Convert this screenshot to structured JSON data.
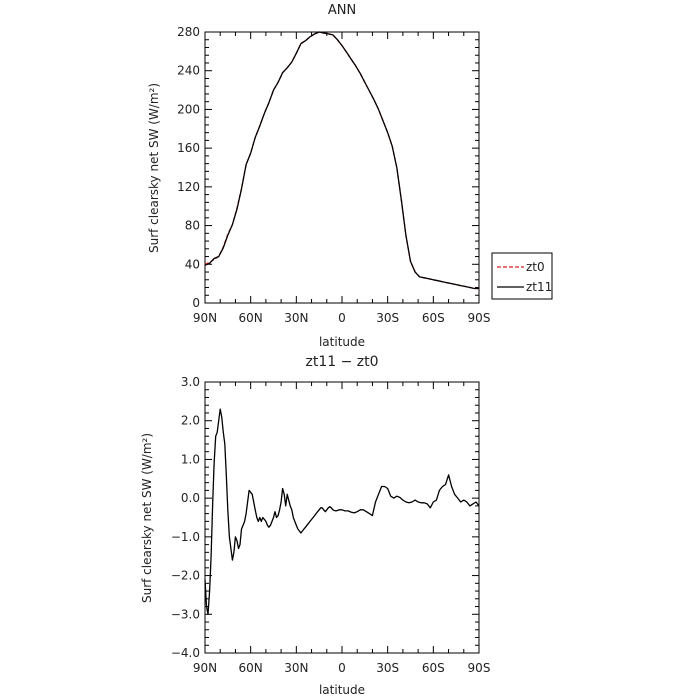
{
  "chart_data": [
    {
      "type": "line",
      "title": "ANN",
      "xlabel": "latitude",
      "ylabel": "Surf clearsky net SW (W/m²)",
      "x_axis": {
        "direction": "north-to-south",
        "range": [
          90,
          -90
        ],
        "ticks": [
          90,
          60,
          30,
          0,
          -30,
          -60,
          -90
        ],
        "tick_labels": [
          "90N",
          "60N",
          "30N",
          "0",
          "30S",
          "60S",
          "90S"
        ]
      },
      "y_axis": {
        "range": [
          0,
          280
        ],
        "ticks": [
          0,
          40,
          80,
          120,
          160,
          200,
          240,
          280
        ],
        "tick_labels": [
          "0",
          "40",
          "80",
          "120",
          "160",
          "200",
          "240",
          "280"
        ]
      },
      "legend": {
        "placement": "right-outside",
        "entries": [
          "zt0",
          "zt11"
        ]
      },
      "series": [
        {
          "name": "zt0",
          "color": "#d62020",
          "style": "dashed",
          "x": [
            90,
            87,
            84,
            81,
            78,
            75,
            72,
            69,
            66,
            63,
            60,
            57,
            54,
            51,
            48,
            45,
            42,
            39,
            36,
            33,
            30,
            27,
            24,
            21,
            18,
            15,
            12,
            9,
            6,
            3,
            0,
            -3,
            -6,
            -9,
            -12,
            -15,
            -18,
            -21,
            -24,
            -27,
            -30,
            -33,
            -36,
            -39,
            -42,
            -45,
            -48,
            -51,
            -54,
            -57,
            -60,
            -63,
            -66,
            -69,
            -72,
            -75,
            -78,
            -81,
            -84,
            -87,
            -90
          ],
          "y": [
            40,
            42,
            45,
            48,
            58,
            71,
            81,
            98,
            118,
            143,
            155,
            171,
            183,
            196,
            207,
            220,
            228,
            238,
            243,
            249,
            258,
            268,
            271,
            275,
            278,
            280,
            279,
            278,
            277,
            272,
            266,
            259,
            252,
            245,
            237,
            228,
            219,
            210,
            200,
            188,
            176,
            162,
            140,
            106,
            70,
            43,
            32,
            27,
            26,
            25,
            24,
            23,
            22,
            21,
            20,
            19,
            18,
            17,
            16,
            15,
            15
          ]
        },
        {
          "name": "zt11",
          "color": "#000000",
          "style": "solid",
          "x": [
            90,
            87,
            84,
            81,
            78,
            75,
            72,
            69,
            66,
            63,
            60,
            57,
            54,
            51,
            48,
            45,
            42,
            39,
            36,
            33,
            30,
            27,
            24,
            21,
            18,
            15,
            12,
            9,
            6,
            3,
            0,
            -3,
            -6,
            -9,
            -12,
            -15,
            -18,
            -21,
            -24,
            -27,
            -30,
            -33,
            -36,
            -39,
            -42,
            -45,
            -48,
            -51,
            -54,
            -57,
            -60,
            -63,
            -66,
            -69,
            -72,
            -75,
            -78,
            -81,
            -84,
            -87,
            -90
          ],
          "y": [
            39,
            41,
            46,
            48,
            57,
            70,
            81,
            97,
            118,
            143,
            155,
            171,
            183,
            196,
            207,
            220,
            228,
            238,
            243,
            249,
            258,
            268,
            271,
            275,
            278,
            280,
            279,
            278,
            277,
            272,
            266,
            259,
            252,
            245,
            237,
            228,
            219,
            210,
            200,
            188,
            176,
            162,
            140,
            106,
            70,
            43,
            32,
            27,
            26,
            25,
            24,
            23,
            22,
            21,
            20,
            19,
            18,
            17,
            16,
            15,
            15
          ]
        }
      ]
    },
    {
      "type": "line",
      "title": "zt11 − zt0",
      "xlabel": "latitude",
      "ylabel": "Surf clearsky net SW (W/m²)",
      "x_axis": {
        "direction": "north-to-south",
        "range": [
          90,
          -90
        ],
        "ticks": [
          90,
          60,
          30,
          0,
          -30,
          -60,
          -90
        ],
        "tick_labels": [
          "90N",
          "60N",
          "30N",
          "0",
          "30S",
          "60S",
          "90S"
        ]
      },
      "y_axis": {
        "range": [
          -4.0,
          3.0
        ],
        "ticks": [
          -4,
          -3,
          -2,
          -1,
          0,
          1,
          2,
          3
        ],
        "tick_labels": [
          "−4.0",
          "−3.0",
          "−2.0",
          "−1.0",
          "0.0",
          "1.0",
          "2.0",
          "3.0"
        ]
      },
      "series": [
        {
          "color": "#000000",
          "style": "solid",
          "x": [
            90,
            89,
            88,
            87,
            86,
            85,
            84,
            83,
            82,
            81,
            80,
            79,
            78,
            77,
            76,
            75,
            74,
            73,
            72,
            71,
            70,
            69,
            68,
            67,
            66,
            65,
            64,
            63,
            62,
            61,
            60,
            59,
            58,
            57,
            56,
            55,
            54,
            53,
            52,
            51,
            50,
            49,
            48,
            47,
            46,
            45,
            44,
            43,
            42,
            41,
            40,
            39,
            38,
            37,
            36,
            35,
            34,
            33,
            32,
            31,
            30,
            29,
            28,
            27,
            26,
            25,
            24,
            23,
            22,
            21,
            20,
            19,
            18,
            17,
            16,
            15,
            14,
            13,
            12,
            11,
            10,
            9,
            8,
            7,
            6,
            5,
            4,
            3,
            2,
            1,
            0,
            -2,
            -4,
            -6,
            -8,
            -10,
            -12,
            -14,
            -16,
            -18,
            -20,
            -22,
            -24,
            -26,
            -28,
            -30,
            -32,
            -34,
            -36,
            -38,
            -40,
            -42,
            -44,
            -46,
            -48,
            -50,
            -52,
            -54,
            -56,
            -58,
            -60,
            -62,
            -64,
            -66,
            -68,
            -70,
            -72,
            -74,
            -76,
            -78,
            -80,
            -82,
            -84,
            -86,
            -88,
            -90
          ],
          "y": [
            -2.1,
            -2.8,
            -3.0,
            -2.4,
            -1.5,
            -0.2,
            0.9,
            1.6,
            1.7,
            2.0,
            2.3,
            2.1,
            1.7,
            1.4,
            0.6,
            -0.3,
            -1.0,
            -1.3,
            -1.6,
            -1.4,
            -1.0,
            -1.1,
            -1.3,
            -1.2,
            -0.8,
            -0.7,
            -0.6,
            -0.4,
            -0.1,
            0.2,
            0.15,
            0.1,
            -0.1,
            -0.3,
            -0.5,
            -0.6,
            -0.5,
            -0.6,
            -0.5,
            -0.55,
            -0.6,
            -0.7,
            -0.75,
            -0.7,
            -0.6,
            -0.5,
            -0.35,
            -0.5,
            -0.45,
            -0.3,
            -0.1,
            0.25,
            0.1,
            -0.2,
            0.1,
            -0.05,
            -0.2,
            -0.3,
            -0.5,
            -0.6,
            -0.7,
            -0.8,
            -0.85,
            -0.9,
            -0.85,
            -0.8,
            -0.75,
            -0.7,
            -0.65,
            -0.6,
            -0.55,
            -0.5,
            -0.45,
            -0.4,
            -0.35,
            -0.3,
            -0.25,
            -0.25,
            -0.3,
            -0.35,
            -0.3,
            -0.25,
            -0.22,
            -0.25,
            -0.3,
            -0.32,
            -0.33,
            -0.32,
            -0.3,
            -0.3,
            -0.3,
            -0.33,
            -0.33,
            -0.36,
            -0.38,
            -0.35,
            -0.3,
            -0.3,
            -0.35,
            -0.4,
            -0.45,
            -0.1,
            0.1,
            0.3,
            0.3,
            0.25,
            0.05,
            0.0,
            0.05,
            0.02,
            -0.05,
            -0.1,
            -0.12,
            -0.1,
            -0.05,
            -0.1,
            -0.12,
            -0.12,
            -0.15,
            -0.25,
            -0.1,
            -0.05,
            0.2,
            0.3,
            0.35,
            0.6,
            0.3,
            0.1,
            0.0,
            -0.1,
            -0.05,
            -0.1,
            -0.2,
            -0.15,
            -0.1,
            -0.2
          ]
        }
      ]
    }
  ]
}
